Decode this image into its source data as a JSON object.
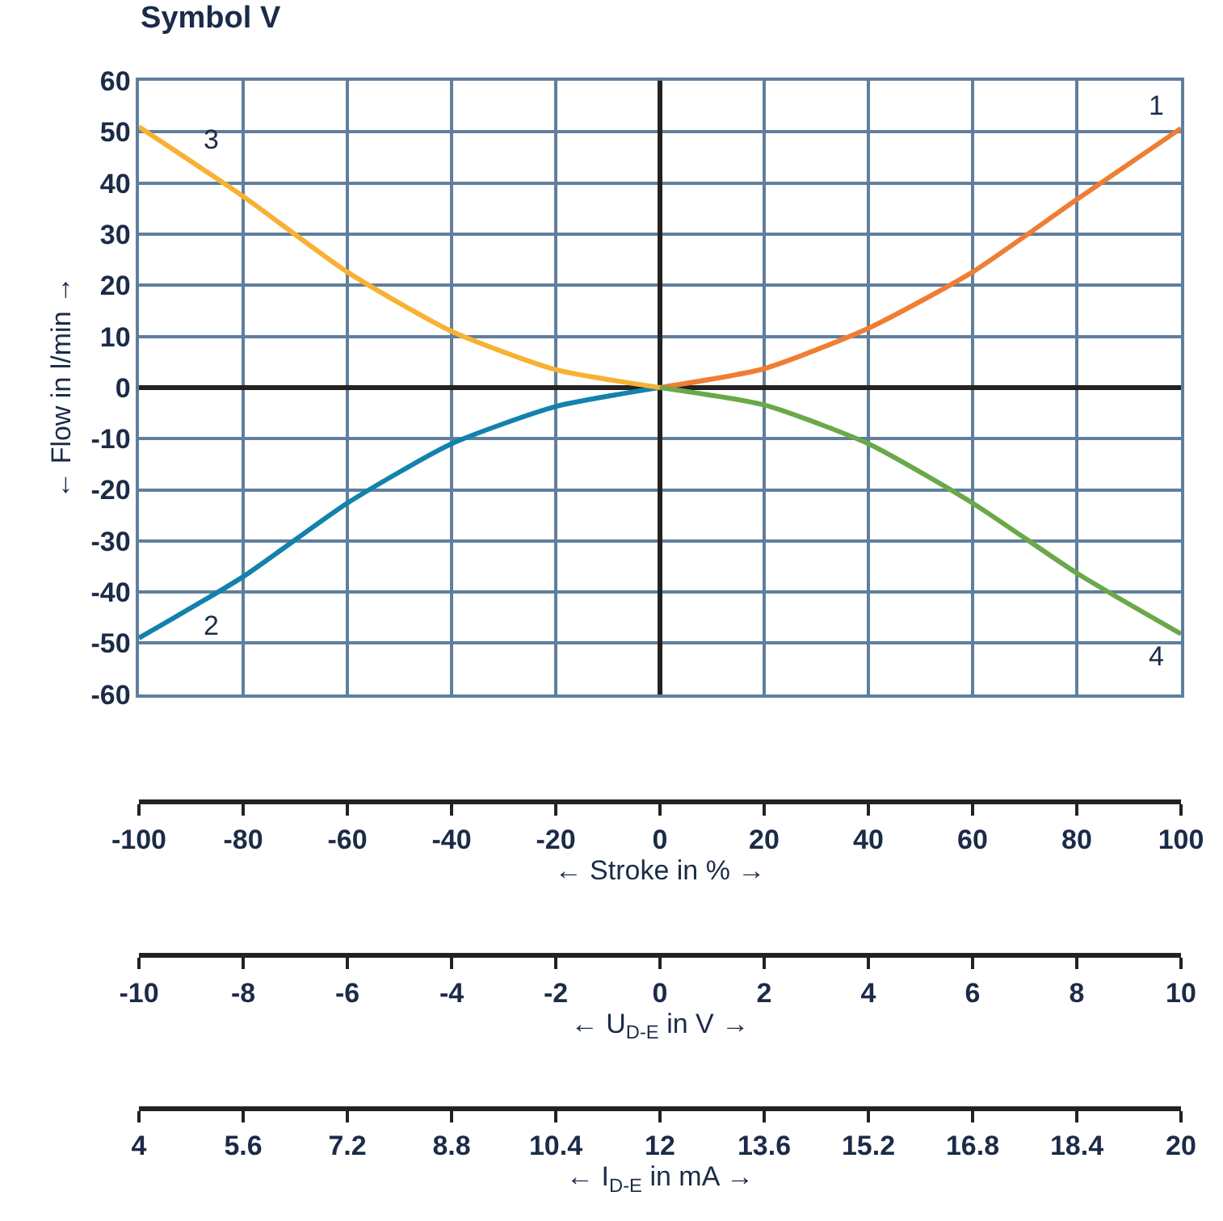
{
  "chart_data": {
    "type": "line",
    "title": "Symbol V",
    "ylabel": "← Flow in l/min →",
    "xlabel": "← Stroke in % →",
    "xlim": [
      -100,
      100
    ],
    "xticks": [
      -100,
      -80,
      -60,
      -40,
      -20,
      0,
      20,
      40,
      60,
      80,
      100
    ],
    "ylim": [
      -60,
      60
    ],
    "yticks": [
      -60,
      -50,
      -40,
      -30,
      -20,
      -10,
      0,
      10,
      20,
      30,
      40,
      50,
      60
    ],
    "annotations": [
      "-10",
      "-8",
      "-6",
      "-4",
      "-2",
      "0",
      "2",
      "4",
      "6",
      "8",
      "10",
      "← U$_{D-E}$ in V →",
      "4",
      "5.6",
      "7.2",
      "8.8",
      "10.4",
      "12",
      "13.6",
      "15.2",
      "16.8",
      "18.4",
      "20",
      "← I$_{D-E}$ in mA →"
    ],
    "grid": true,
    "legend": false,
    "marker": "none",
    "line_style": "solid",
    "series": [
      {
        "name": "1",
        "color": "#f07d34",
        "x": [
          0,
          20,
          40,
          60,
          80,
          100
        ],
        "values": [
          0,
          3.7,
          11.6,
          22.6,
          36.8,
          50.7
        ]
      },
      {
        "name": "2",
        "color": "#1282ac",
        "x": [
          -100,
          -80,
          -60,
          -40,
          -20,
          0
        ],
        "values": [
          -49,
          -37,
          -22.6,
          -11,
          -3.7,
          0
        ]
      },
      {
        "name": "3",
        "color": "#f8b133",
        "x": [
          -100,
          -80,
          -60,
          -40,
          -20,
          0
        ],
        "values": [
          51,
          37.4,
          22.6,
          11,
          3.5,
          0
        ]
      },
      {
        "name": "4",
        "color": "#6aa84a",
        "x": [
          0,
          20,
          40,
          60,
          80,
          100
        ],
        "values": [
          0,
          -3.4,
          -11,
          -22.6,
          -36.3,
          -48.2
        ]
      }
    ]
  }
}
